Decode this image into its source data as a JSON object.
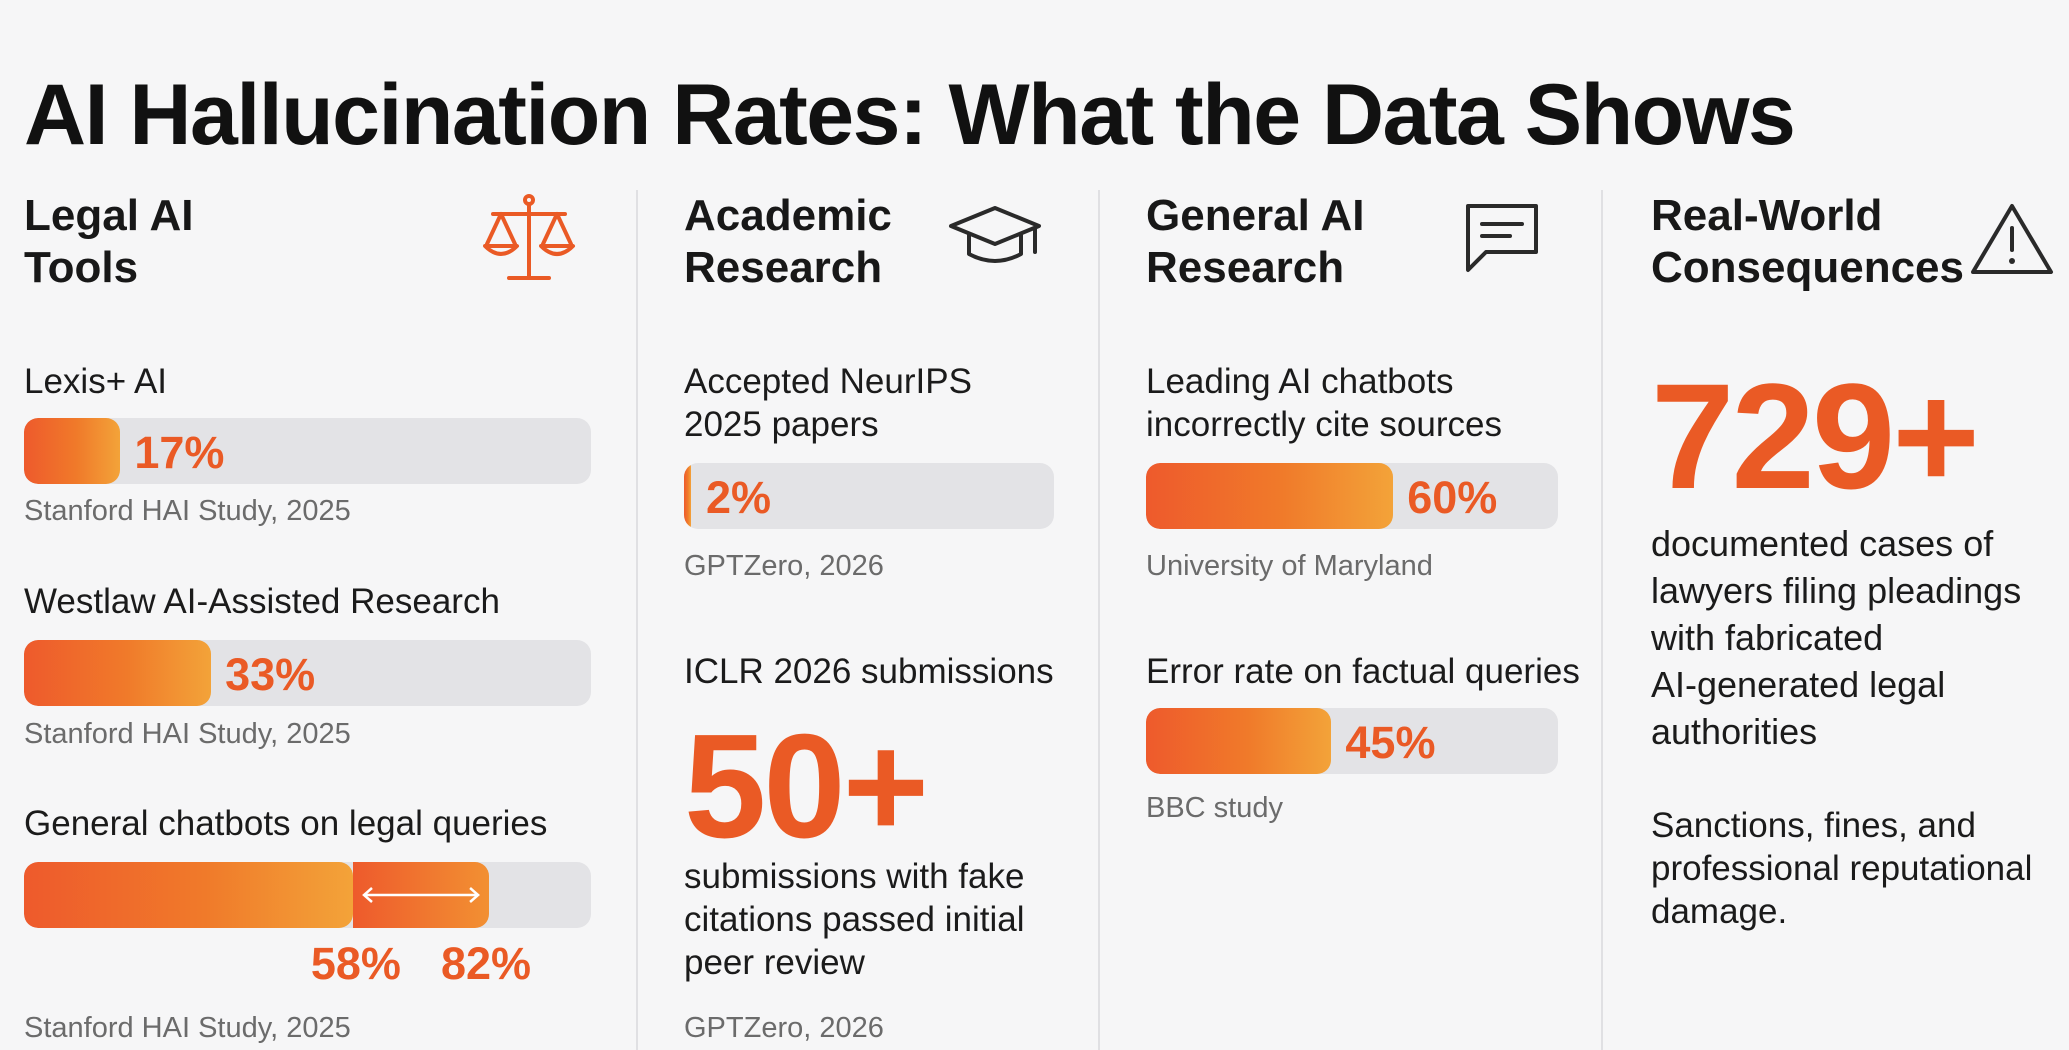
{
  "title": "AI Hallucination Rates: What the Data Shows",
  "colors": {
    "accent": "#ea5a25",
    "gradient_start": "#ee5a2c",
    "gradient_end": "#f3a339",
    "track": "#e3e3e6"
  },
  "legal": {
    "heading": "Legal AI\nTools",
    "icon": "scales-of-justice-icon",
    "items": [
      {
        "label": "Lexis+ AI",
        "value": 17,
        "pct_label": "17%",
        "source": "Stanford HAI Study, 2025"
      },
      {
        "label": "Westlaw AI-Assisted Research",
        "value": 33,
        "pct_label": "33%",
        "source": "Stanford HAI Study, 2025"
      }
    ],
    "range_item": {
      "label": "General chatbots on legal queries",
      "low": 58,
      "high": 82,
      "low_label": "58%",
      "high_label": "82%",
      "source": "Stanford HAI Study, 2025"
    }
  },
  "academic": {
    "heading": "Academic\nResearch",
    "icon": "graduation-cap-icon",
    "item": {
      "label": "Accepted NeurIPS\n2025 papers",
      "value": 2,
      "pct_label": "2%",
      "source": "GPTZero, 2026"
    },
    "stat_label": "ICLR 2026 submissions",
    "stat_value": "50+",
    "stat_text": "submissions with fake\ncitations passed initial\npeer review",
    "stat_source": "GPTZero, 2026"
  },
  "general": {
    "heading": "General AI\nResearch",
    "icon": "chat-bubble-icon",
    "items": [
      {
        "label": "Leading AI chatbots\nincorrectly cite sources",
        "value": 60,
        "pct_label": "60%",
        "source": "University of Maryland"
      },
      {
        "label": "Error rate on factual queries",
        "value": 45,
        "pct_label": "45%",
        "source": "BBC study"
      }
    ]
  },
  "consequences": {
    "heading": "Real-World\nConsequences",
    "icon": "warning-triangle-icon",
    "stat_value": "729+",
    "stat_text": "documented cases of\nlawyers filing pleadings\nwith fabricated\nAI-generated legal\nauthorities",
    "note": "Sanctions, fines, and\nprofessional reputational\ndamage."
  },
  "chart_data": {
    "type": "bar",
    "orientation": "horizontal",
    "title": "AI Hallucination Rates: What the Data Shows",
    "unit": "%",
    "xlim": [
      0,
      100
    ],
    "series": [
      {
        "name": "Lexis+ AI",
        "group": "Legal AI Tools",
        "value": 17
      },
      {
        "name": "Westlaw AI-Assisted Research",
        "group": "Legal AI Tools",
        "value": 33
      },
      {
        "name": "General chatbots on legal queries",
        "group": "Legal AI Tools",
        "range": [
          58,
          82
        ]
      },
      {
        "name": "Accepted NeurIPS 2025 papers",
        "group": "Academic Research",
        "value": 2
      },
      {
        "name": "Leading AI chatbots incorrectly cite sources",
        "group": "General AI Research",
        "value": 60
      },
      {
        "name": "Error rate on factual queries",
        "group": "General AI Research",
        "value": 45
      }
    ]
  }
}
